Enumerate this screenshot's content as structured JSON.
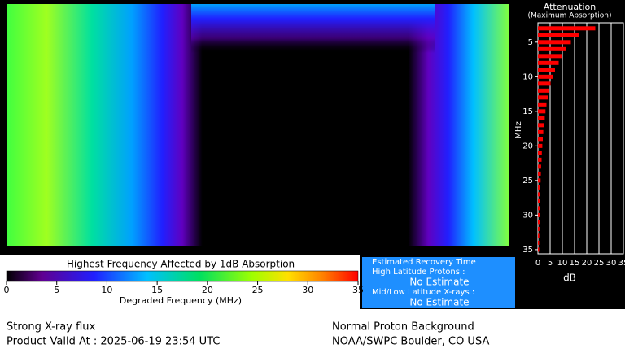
{
  "map": {
    "colorbar": {
      "title": "Highest Frequency Affected by 1dB Absorption",
      "label": "Degraded Frequency (MHz)",
      "range": [
        0,
        35
      ],
      "ticks": [
        0,
        5,
        10,
        15,
        20,
        25,
        30,
        35
      ]
    }
  },
  "recovery": {
    "title": "Estimated Recovery Time",
    "high_label": "High Latitude Protons :",
    "high_value": "No Estimate",
    "low_label": "Mid/Low Latitude X-rays :",
    "low_value": "No Estimate"
  },
  "chart_data": {
    "type": "bar",
    "orientation": "horizontal",
    "title": "Attenuation",
    "subtitle": "(Maximum Absorption)",
    "y": [
      3,
      4,
      5,
      6,
      7,
      8,
      9,
      10,
      11,
      12,
      13,
      14,
      15,
      16,
      17,
      18,
      19,
      20,
      21,
      22,
      23,
      24,
      25,
      26,
      27,
      28,
      29,
      30,
      31,
      32,
      33,
      34,
      35
    ],
    "values": [
      23.5,
      16.8,
      13.5,
      11.5,
      10,
      8.5,
      7,
      6,
      5.2,
      4.6,
      4,
      3.5,
      3.1,
      2.8,
      2.5,
      2.2,
      2,
      1.8,
      1.6,
      1.5,
      1.3,
      1.2,
      1.1,
      1,
      0.9,
      0.85,
      0.8,
      0.7,
      0.65,
      0.6,
      0.55,
      0.5,
      0.5
    ],
    "color": "#ff0000",
    "xlabel": "dB",
    "ylabel": "MHz",
    "xlim": [
      0,
      35
    ],
    "xticks": [
      0,
      5,
      10,
      15,
      20,
      25,
      30,
      35
    ],
    "ylim": [
      2.2,
      35.6
    ],
    "yticks": [
      5,
      10,
      15,
      20,
      25,
      30,
      35
    ],
    "y_reversed": true,
    "grid": true
  },
  "footer": {
    "left1": "Strong X-ray flux",
    "left2": "Product Valid At : 2025-06-19 23:54 UTC",
    "right1": "Normal Proton Background",
    "right2": "NOAA/SWPC Boulder, CO USA"
  }
}
